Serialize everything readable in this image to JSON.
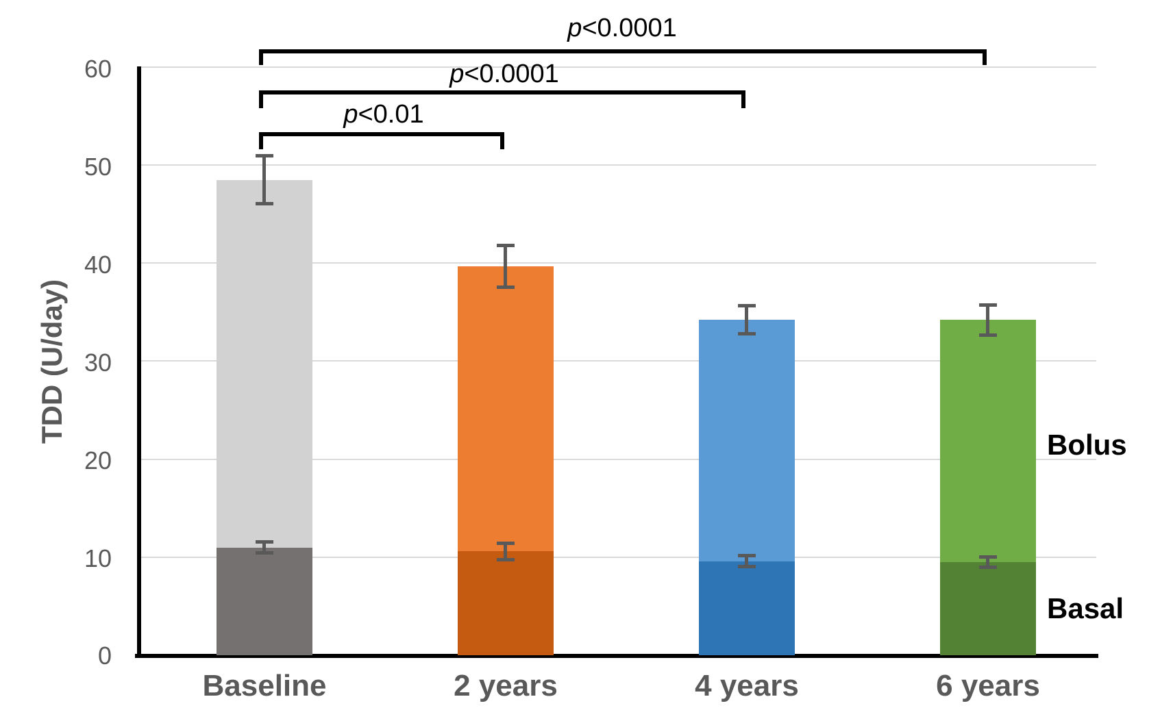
{
  "chart_data": {
    "type": "stacked_bar",
    "title": "",
    "ylabel": "TDD (U/day)",
    "xlabel": "",
    "y_axis": {
      "min": 0,
      "max": 60,
      "step": 10
    },
    "yticks": [
      "60",
      "50",
      "40",
      "30",
      "20",
      "10",
      "0"
    ],
    "categories": [
      "Baseline",
      "2 years",
      "4 years",
      "6 years"
    ],
    "series": [
      {
        "name": "Basal",
        "values": [
          11.0,
          10.6,
          9.6,
          9.5
        ],
        "errors": [
          0.7,
          1.0,
          0.75,
          0.7
        ],
        "colors": [
          "#767171",
          "#C55A11",
          "#2E75B6",
          "#548235"
        ]
      },
      {
        "name": "Bolus",
        "values": [
          37.5,
          29.1,
          24.6,
          24.7
        ],
        "colors": [
          "#D2D2D2",
          "#ED7D31",
          "#5B9BD5",
          "#70AD47"
        ]
      }
    ],
    "totals": [
      48.5,
      39.7,
      34.2,
      34.2
    ],
    "total_errors": [
      2.6,
      2.3,
      1.6,
      1.7
    ],
    "brackets": [
      {
        "from": 0,
        "to": 1,
        "label": "p<0.01"
      },
      {
        "from": 0,
        "to": 2,
        "label": "p<0.0001"
      },
      {
        "from": 0,
        "to": 3,
        "label": "p<0.0001"
      }
    ],
    "colors": {
      "error_bar": "#595959",
      "gridline": "#D9D9D9",
      "axis": "#000000",
      "tick_text": "#595959",
      "bracket": "#000000",
      "side_label_text": "#000000"
    },
    "grid": true,
    "legend_position": "right-inline"
  }
}
